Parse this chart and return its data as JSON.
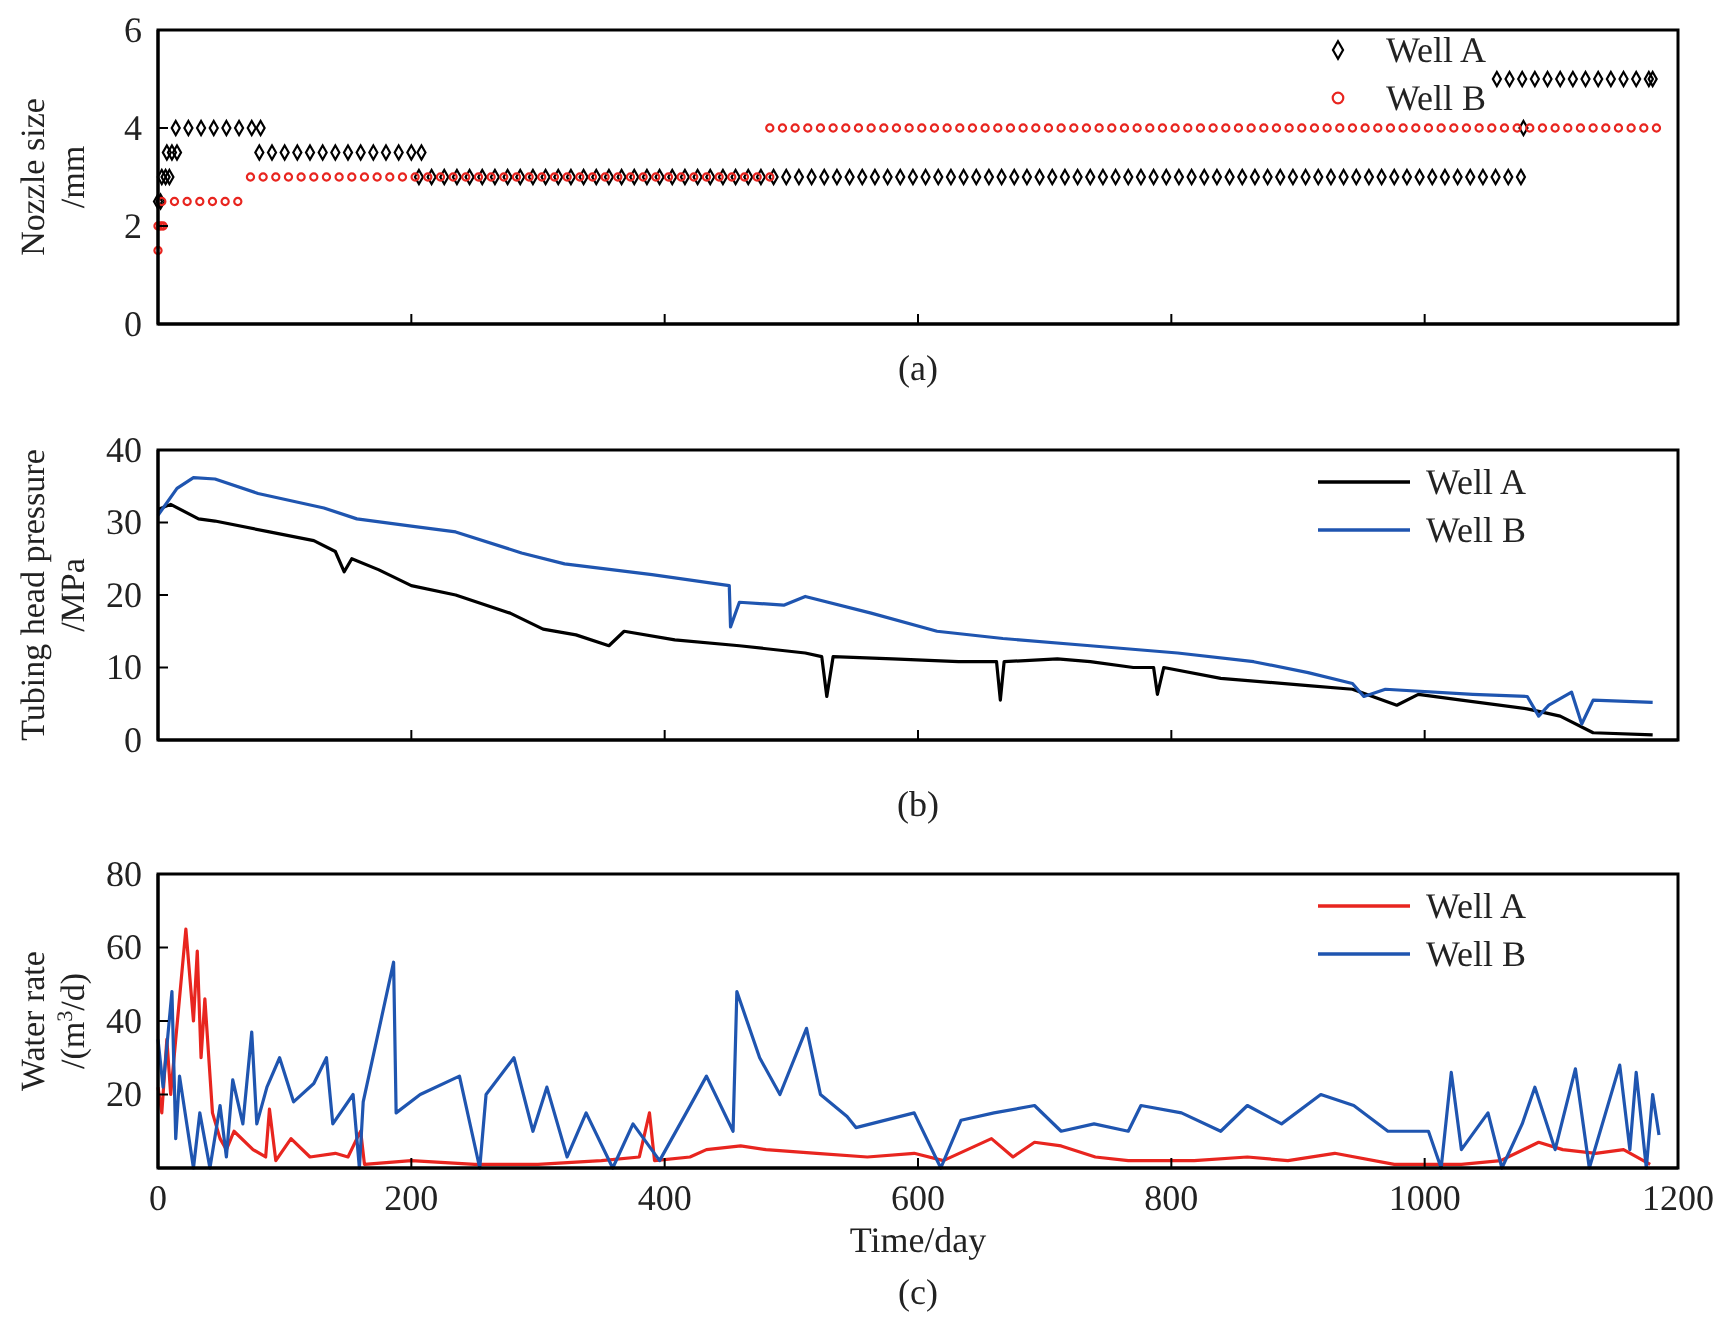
{
  "chart_data": [
    {
      "type": "scatter",
      "ylabel": "Nozzle size\n/mm",
      "xlim": [
        0,
        1200
      ],
      "xticks": [
        {
          "value": 200,
          "label": null
        },
        {
          "value": 400,
          "label": null
        },
        {
          "value": 600,
          "label": null
        },
        {
          "value": 800,
          "label": null
        },
        {
          "value": 1000,
          "label": null
        }
      ],
      "ylim": [
        0,
        6
      ],
      "yticks": [
        0,
        2,
        4,
        6
      ],
      "tick_labels": "y",
      "legend": "top right",
      "annotations": [
        "(a)"
      ],
      "series": [
        {
          "name": "Well A",
          "color": "#000000",
          "marker": "diamond",
          "x": [
            0,
            2,
            3,
            6,
            9,
            7,
            11,
            15,
            14,
            24,
            34,
            44,
            54,
            64,
            74,
            81,
            80,
            90,
            100,
            110,
            120,
            130,
            140,
            150,
            160,
            170,
            180,
            190,
            200,
            208,
            206,
            216,
            226,
            236,
            246,
            256,
            266,
            276,
            286,
            296,
            306,
            316,
            326,
            336,
            346,
            356,
            366,
            376,
            386,
            396,
            406,
            416,
            426,
            436,
            446,
            456,
            466,
            476,
            486,
            496,
            506,
            516,
            526,
            536,
            546,
            556,
            566,
            576,
            586,
            596,
            606,
            616,
            626,
            636,
            646,
            656,
            666,
            676,
            686,
            696,
            706,
            716,
            726,
            736,
            746,
            756,
            766,
            776,
            786,
            796,
            806,
            816,
            826,
            836,
            846,
            856,
            866,
            876,
            886,
            896,
            906,
            916,
            926,
            936,
            946,
            956,
            966,
            976,
            986,
            996,
            1006,
            1016,
            1026,
            1036,
            1046,
            1056,
            1066,
            1076,
            1078,
            1057,
            1067,
            1077,
            1087,
            1097,
            1107,
            1117,
            1127,
            1137,
            1147,
            1157,
            1167,
            1177,
            1180
          ],
          "values": [
            2.5,
            2.5,
            3,
            3,
            3,
            3.5,
            3.5,
            3.5,
            4,
            4,
            4,
            4,
            4,
            4,
            4,
            4,
            3.5,
            3.5,
            3.5,
            3.5,
            3.5,
            3.5,
            3.5,
            3.5,
            3.5,
            3.5,
            3.5,
            3.5,
            3.5,
            3.5,
            3,
            3,
            3,
            3,
            3,
            3,
            3,
            3,
            3,
            3,
            3,
            3,
            3,
            3,
            3,
            3,
            3,
            3,
            3,
            3,
            3,
            3,
            3,
            3,
            3,
            3,
            3,
            3,
            3,
            3,
            3,
            3,
            3,
            3,
            3,
            3,
            3,
            3,
            3,
            3,
            3,
            3,
            3,
            3,
            3,
            3,
            3,
            3,
            3,
            3,
            3,
            3,
            3,
            3,
            3,
            3,
            3,
            3,
            3,
            3,
            3,
            3,
            3,
            3,
            3,
            3,
            3,
            3,
            3,
            3,
            3,
            3,
            3,
            3,
            3,
            3,
            3,
            3,
            3,
            3,
            3,
            3,
            3,
            3,
            3,
            3,
            3,
            3,
            4,
            5,
            5,
            5,
            5,
            5,
            5,
            5,
            5,
            5,
            5,
            5,
            5,
            5,
            5
          ]
        },
        {
          "name": "Well B",
          "color": "#e8251f",
          "marker": "circle",
          "x": [
            0,
            0,
            2,
            4,
            3,
            13,
            23,
            33,
            43,
            53,
            63,
            73,
            83,
            93,
            103,
            113,
            123,
            133,
            143,
            153,
            163,
            173,
            183,
            193,
            203,
            213,
            223,
            233,
            243,
            253,
            263,
            273,
            283,
            293,
            303,
            313,
            323,
            333,
            343,
            353,
            363,
            373,
            383,
            393,
            403,
            413,
            423,
            433,
            443,
            453,
            463,
            473,
            483,
            483,
            493,
            503,
            513,
            523,
            533,
            543,
            553,
            563,
            573,
            583,
            593,
            603,
            613,
            623,
            633,
            643,
            653,
            663,
            673,
            683,
            693,
            703,
            713,
            723,
            733,
            743,
            753,
            763,
            773,
            783,
            793,
            803,
            813,
            823,
            833,
            843,
            853,
            863,
            873,
            883,
            893,
            903,
            913,
            923,
            933,
            943,
            953,
            963,
            973,
            983,
            993,
            1003,
            1013,
            1023,
            1033,
            1043,
            1053,
            1063,
            1073,
            1083,
            1093,
            1103,
            1113,
            1123,
            1133,
            1143,
            1153,
            1163,
            1173,
            1183
          ],
          "values": [
            1.5,
            2,
            2,
            2,
            2.5,
            2.5,
            2.5,
            2.5,
            2.5,
            2.5,
            2.5,
            3,
            3,
            3,
            3,
            3,
            3,
            3,
            3,
            3,
            3,
            3,
            3,
            3,
            3,
            3,
            3,
            3,
            3,
            3,
            3,
            3,
            3,
            3,
            3,
            3,
            3,
            3,
            3,
            3,
            3,
            3,
            3,
            3,
            3,
            3,
            3,
            3,
            3,
            3,
            3,
            3,
            3,
            4,
            4,
            4,
            4,
            4,
            4,
            4,
            4,
            4,
            4,
            4,
            4,
            4,
            4,
            4,
            4,
            4,
            4,
            4,
            4,
            4,
            4,
            4,
            4,
            4,
            4,
            4,
            4,
            4,
            4,
            4,
            4,
            4,
            4,
            4,
            4,
            4,
            4,
            4,
            4,
            4,
            4,
            4,
            4,
            4,
            4,
            4,
            4,
            4,
            4,
            4,
            4,
            4,
            4,
            4,
            4,
            4,
            4,
            4,
            4,
            4,
            4,
            4,
            4,
            4,
            4,
            4,
            4,
            4,
            4,
            4
          ]
        }
      ]
    },
    {
      "type": "line",
      "ylabel": "Tubing head pressure\n/MPa",
      "xlim": [
        0,
        1200
      ],
      "xticks": [
        {
          "value": 200,
          "label": null
        },
        {
          "value": 400,
          "label": null
        },
        {
          "value": 600,
          "label": null
        },
        {
          "value": 800,
          "label": null
        },
        {
          "value": 1000,
          "label": null
        }
      ],
      "ylim": [
        0,
        40
      ],
      "yticks": [
        0,
        10,
        20,
        30,
        40
      ],
      "tick_labels": "y",
      "legend": "top right",
      "annotations": [
        "(b)"
      ],
      "series": [
        {
          "name": "Well A",
          "color": "#000000",
          "x": [
            0,
            10,
            32,
            45,
            88,
            123,
            140,
            147,
            153,
            174,
            200,
            235,
            278,
            304,
            330,
            356,
            368,
            408,
            459,
            511,
            524,
            528,
            533,
            580,
            632,
            662,
            665,
            668,
            710,
            736,
            770,
            786,
            789,
            794,
            839,
            908,
            943,
            978,
            995,
            1029,
            1081,
            1107,
            1133,
            1180
          ],
          "values": [
            31.8,
            32.5,
            30.5,
            30.2,
            28.7,
            27.5,
            26,
            23.2,
            25,
            23.5,
            21.3,
            20,
            17.5,
            15.3,
            14.5,
            13,
            15,
            13.8,
            13,
            12,
            11.5,
            6,
            11.5,
            11.2,
            10.8,
            10.8,
            5.5,
            10.8,
            11.2,
            10.8,
            10,
            10,
            6.3,
            10,
            8.5,
            7.5,
            7,
            4.8,
            6.3,
            5.5,
            4.3,
            3.3,
            1,
            0.7
          ]
        },
        {
          "name": "Well B",
          "color": "#1f55b0",
          "x": [
            0,
            15,
            28,
            45,
            79,
            131,
            157,
            200,
            235,
            287,
            321,
            390,
            451,
            452,
            459,
            494,
            511,
            563,
            615,
            667,
            736,
            805,
            865,
            908,
            943,
            952,
            969,
            1038,
            1081,
            1090,
            1098,
            1116,
            1124,
            1133,
            1180
          ],
          "values": [
            31,
            34.7,
            36.2,
            36,
            34,
            32,
            30.5,
            29.5,
            28.7,
            25.8,
            24.3,
            22.8,
            21.3,
            15.6,
            19,
            18.6,
            19.8,
            17.5,
            15,
            14,
            13,
            12,
            10.8,
            9.3,
            7.8,
            6,
            7,
            6.3,
            6,
            3.3,
            4.8,
            6.6,
            2.2,
            5.5,
            5.2
          ]
        }
      ]
    },
    {
      "type": "line",
      "xlabel": "Time/day",
      "ylabel": "Water rate\n/(m$^{3}$/d)",
      "xlim": [
        0,
        1200
      ],
      "xticks": [
        0,
        200,
        400,
        600,
        800,
        1000,
        1200
      ],
      "ylim": [
        0,
        80
      ],
      "yticks": [
        20,
        40,
        60,
        80
      ],
      "legend": "top right",
      "annotations": [
        "(c)"
      ],
      "series": [
        {
          "name": "Well A",
          "color": "#e8251f",
          "x": [
            0,
            3,
            7,
            10,
            22,
            28,
            31,
            34,
            37,
            43,
            49,
            54,
            60,
            75,
            85,
            88,
            93,
            105,
            120,
            140,
            150,
            157,
            160,
            163,
            200,
            250,
            300,
            350,
            380,
            388,
            392,
            420,
            433,
            460,
            480,
            520,
            560,
            597,
            620,
            658,
            675,
            692,
            713,
            740,
            766,
            818,
            860,
            892,
            929,
            976,
            1029,
            1060,
            1090,
            1109,
            1135,
            1157,
            1178
          ],
          "values": [
            22,
            15,
            35,
            20,
            65,
            40,
            59,
            30,
            46,
            15,
            8,
            5,
            10,
            5,
            3,
            16,
            2,
            8,
            3,
            4,
            3,
            8,
            10,
            1,
            2,
            1,
            1,
            2,
            3,
            15,
            2,
            3,
            5,
            6,
            5,
            4,
            3,
            4,
            2,
            8,
            3,
            7,
            6,
            3,
            2,
            2,
            3,
            2,
            4,
            1,
            1,
            2,
            7,
            5,
            4,
            5,
            1
          ]
        },
        {
          "name": "Well B",
          "color": "#1f55b0",
          "x": [
            0,
            4,
            11,
            14,
            17,
            28,
            33,
            41,
            49,
            54,
            59,
            67,
            74,
            78,
            86,
            96,
            107,
            123,
            133,
            138,
            154,
            159,
            162,
            186,
            188,
            207,
            238,
            254,
            259,
            281,
            296,
            307,
            323,
            338,
            359,
            375,
            396,
            417,
            433,
            454,
            457,
            475,
            491,
            512,
            523,
            544,
            551,
            597,
            618,
            634,
            660,
            692,
            713,
            739,
            766,
            776,
            808,
            839,
            860,
            887,
            918,
            944,
            971,
            1003,
            1013,
            1021,
            1029,
            1050,
            1061,
            1077,
            1087,
            1103,
            1119,
            1130,
            1154,
            1162,
            1167,
            1175,
            1180,
            1185
          ],
          "values": [
            35,
            22,
            48,
            8,
            25,
            0,
            15,
            0,
            17,
            3,
            24,
            12,
            37,
            12,
            22,
            30,
            18,
            23,
            30,
            12,
            20,
            0,
            18,
            56,
            15,
            20,
            25,
            0,
            20,
            30,
            10,
            22,
            3,
            15,
            0,
            12,
            2,
            15,
            25,
            10,
            48,
            30,
            20,
            38,
            20,
            14,
            11,
            15,
            0,
            13,
            15,
            17,
            10,
            12,
            10,
            17,
            15,
            10,
            17,
            12,
            20,
            17,
            10,
            10,
            0,
            26,
            5,
            15,
            0,
            12,
            22,
            5,
            27,
            0,
            28,
            5,
            26,
            0,
            20,
            9
          ]
        }
      ]
    }
  ]
}
